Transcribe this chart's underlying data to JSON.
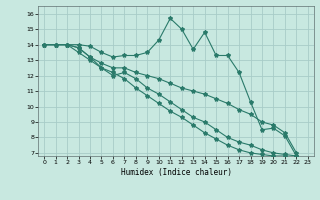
{
  "xlabel": "Humidex (Indice chaleur)",
  "ylabel": "",
  "bg_color": "#c8e8e0",
  "grid_color": "#a8ccc8",
  "line_color": "#2a7a6a",
  "xlim": [
    -0.5,
    23.5
  ],
  "ylim": [
    6.8,
    16.5
  ],
  "xticks": [
    0,
    1,
    2,
    3,
    4,
    5,
    6,
    7,
    8,
    9,
    10,
    11,
    12,
    13,
    14,
    15,
    16,
    17,
    18,
    19,
    20,
    21,
    22,
    23
  ],
  "yticks": [
    7,
    8,
    9,
    10,
    11,
    12,
    13,
    14,
    15,
    16
  ],
  "series": [
    [
      14.0,
      14.0,
      14.0,
      14.0,
      13.9,
      13.5,
      13.2,
      13.3,
      13.3,
      13.5,
      14.3,
      15.7,
      15.0,
      13.7,
      14.8,
      13.3,
      13.3,
      12.2,
      10.3,
      8.5,
      8.6,
      8.1,
      6.8
    ],
    [
      14.0,
      14.0,
      14.0,
      13.8,
      13.2,
      12.8,
      12.5,
      12.5,
      12.2,
      12.0,
      11.8,
      11.5,
      11.2,
      11.0,
      10.8,
      10.5,
      10.2,
      9.8,
      9.5,
      9.0,
      8.8,
      8.3,
      7.0
    ],
    [
      14.0,
      14.0,
      14.0,
      13.8,
      13.2,
      12.5,
      12.0,
      12.2,
      11.8,
      11.2,
      10.8,
      10.3,
      9.8,
      9.3,
      9.0,
      8.5,
      8.0,
      7.7,
      7.5,
      7.2,
      7.0,
      6.9,
      6.8
    ],
    [
      14.0,
      14.0,
      14.0,
      13.5,
      13.0,
      12.5,
      12.2,
      11.8,
      11.2,
      10.7,
      10.2,
      9.7,
      9.3,
      8.8,
      8.3,
      7.9,
      7.5,
      7.2,
      7.0,
      6.9,
      6.8,
      6.8,
      6.7
    ]
  ]
}
